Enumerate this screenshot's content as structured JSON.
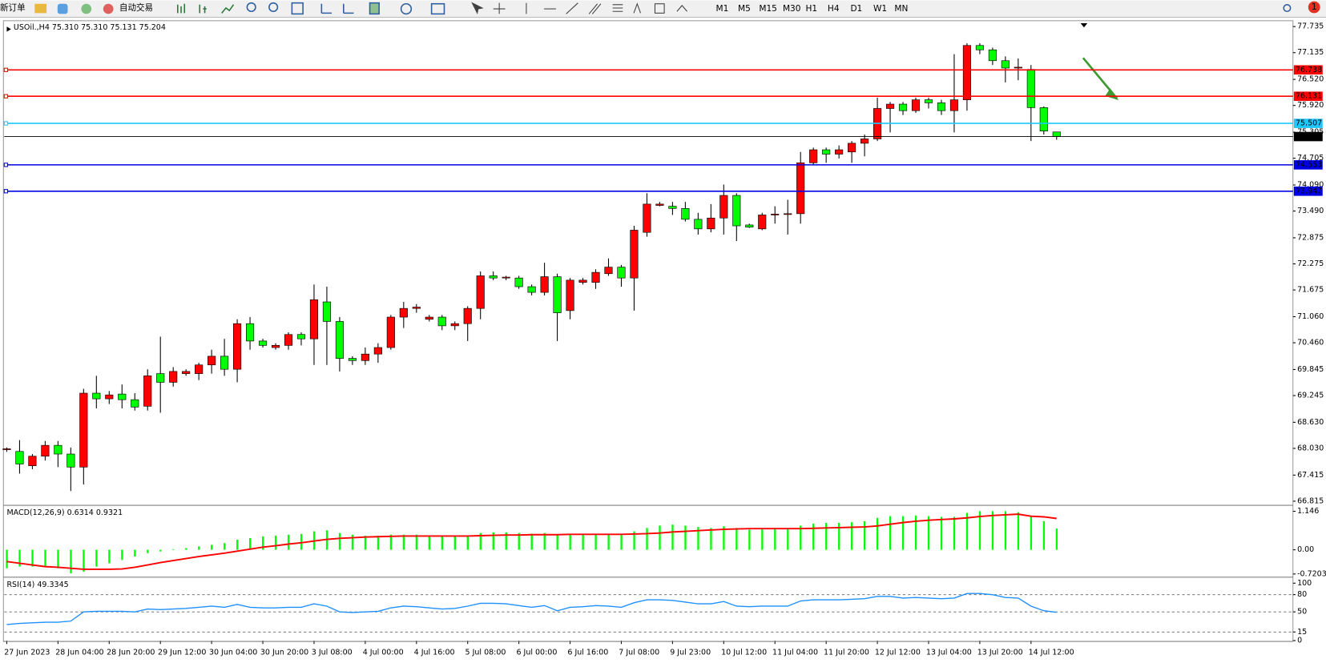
{
  "toolbar": {
    "new_order": "新订单",
    "auto_trading": "自动交易",
    "timeframes": [
      "M1",
      "M5",
      "M15",
      "M30",
      "H1",
      "H4",
      "D1",
      "W1",
      "MN"
    ],
    "notification_count": 1
  },
  "chart_data": [
    {
      "type": "candlestick",
      "title": "USOil.,H4 75.310 75.310 75.131 75.204",
      "up_color": "#ff0000",
      "down_color": "#00ff00",
      "categories": [
        "27 Jun 2023",
        null,
        null,
        null,
        "28 Jun 04:00",
        null,
        null,
        null,
        "28 Jun 20:00",
        null,
        null,
        null,
        "29 Jun 12:00",
        null,
        null,
        null,
        "30 Jun 04:00",
        null,
        null,
        null,
        "30 Jun 20:00",
        null,
        null,
        null,
        "3 Jul 08:00",
        null,
        null,
        null,
        "4 Jul 00:00",
        null,
        null,
        null,
        "4 Jul 16:00",
        null,
        null,
        null,
        "5 Jul 08:00",
        null,
        null,
        null,
        "6 Jul 00:00",
        null,
        null,
        null,
        "6 Jul 16:00",
        null,
        null,
        null,
        "7 Jul 08:00",
        null,
        null,
        null,
        "9 Jul 23:00",
        null,
        null,
        null,
        "10 Jul 12:00",
        null,
        null,
        null,
        "11 Jul 04:00",
        null,
        null,
        null,
        "11 Jul 20:00",
        null,
        null,
        null,
        "12 Jul 12:00",
        null,
        null,
        null,
        "13 Jul 04:00",
        null,
        null,
        null,
        "13 Jul 20:00",
        null,
        null,
        null,
        "14 Jul 12:00",
        null,
        null
      ],
      "open": [
        68.0,
        67.96,
        67.63,
        67.85,
        68.1,
        67.9,
        67.6,
        69.3,
        69.17,
        69.28,
        69.15,
        69.0,
        69.75,
        69.55,
        69.75,
        69.75,
        69.95,
        70.15,
        69.85,
        70.9,
        70.5,
        70.35,
        70.4,
        70.65,
        70.55,
        71.4,
        70.95,
        70.1,
        70.05,
        70.2,
        70.35,
        71.05,
        71.25,
        71.0,
        71.05,
        70.85,
        70.9,
        71.25,
        72.0,
        71.95,
        71.95,
        71.75,
        71.62,
        71.98,
        71.2,
        71.85,
        71.85,
        72.05,
        72.2,
        71.95,
        73.0,
        73.62,
        73.6,
        73.55,
        73.3,
        73.08,
        73.33,
        73.85,
        73.17,
        73.08,
        73.4,
        73.42,
        73.43,
        74.6,
        74.9,
        74.8,
        74.85,
        75.05,
        75.15,
        75.85,
        75.95,
        75.8,
        76.05,
        75.98,
        75.8,
        76.05,
        77.3,
        77.2,
        76.95,
        76.78,
        76.75,
        75.87,
        75.31
      ],
      "high": [
        68.05,
        68.22,
        67.9,
        68.2,
        68.2,
        68.05,
        69.4,
        69.7,
        69.35,
        69.5,
        69.3,
        69.85,
        70.6,
        69.9,
        69.85,
        70.0,
        70.3,
        70.55,
        71.0,
        71.05,
        70.55,
        70.45,
        70.7,
        70.7,
        71.8,
        71.75,
        71.05,
        70.15,
        70.35,
        70.45,
        71.1,
        71.4,
        71.35,
        71.1,
        71.1,
        70.95,
        71.3,
        72.1,
        72.1,
        72.0,
        72.0,
        71.8,
        72.3,
        72.05,
        71.95,
        71.95,
        72.15,
        72.4,
        72.25,
        73.15,
        73.9,
        73.7,
        73.7,
        73.7,
        73.45,
        73.65,
        74.1,
        73.9,
        73.2,
        73.45,
        73.6,
        73.75,
        74.85,
        74.95,
        74.95,
        75.0,
        75.1,
        75.25,
        76.1,
        76.0,
        76.0,
        76.1,
        76.1,
        76.05,
        77.1,
        77.35,
        77.35,
        77.25,
        77.05,
        77.0,
        76.85,
        75.9,
        75.31
      ],
      "low": [
        67.95,
        67.45,
        67.55,
        67.75,
        67.6,
        67.05,
        67.2,
        68.95,
        69.05,
        68.95,
        68.9,
        68.9,
        68.85,
        69.45,
        69.7,
        69.6,
        69.75,
        69.7,
        69.55,
        70.3,
        70.35,
        70.3,
        70.3,
        70.4,
        69.95,
        69.95,
        69.8,
        69.95,
        69.95,
        70.0,
        70.3,
        70.8,
        71.15,
        70.95,
        70.75,
        70.75,
        70.5,
        71.0,
        71.9,
        71.9,
        71.7,
        71.55,
        71.55,
        70.5,
        71.0,
        71.8,
        71.7,
        72.0,
        71.75,
        71.2,
        72.9,
        73.6,
        73.4,
        73.25,
        72.95,
        73.0,
        72.95,
        72.8,
        73.1,
        73.05,
        73.2,
        72.95,
        73.2,
        74.55,
        74.6,
        74.7,
        74.6,
        74.75,
        75.1,
        75.3,
        75.7,
        75.75,
        75.85,
        75.7,
        75.3,
        75.8,
        77.1,
        76.85,
        76.45,
        76.5,
        75.1,
        75.25,
        75.131
      ],
      "close": [
        68.02,
        67.67,
        67.85,
        68.1,
        67.9,
        67.6,
        69.3,
        69.17,
        69.26,
        69.15,
        68.98,
        69.7,
        69.55,
        69.8,
        69.8,
        69.95,
        70.15,
        69.85,
        70.9,
        70.5,
        70.4,
        70.4,
        70.65,
        70.55,
        71.45,
        70.95,
        70.1,
        70.05,
        70.2,
        70.35,
        71.05,
        71.25,
        71.28,
        71.05,
        70.85,
        70.9,
        71.25,
        72.0,
        71.95,
        71.97,
        71.75,
        71.62,
        71.98,
        71.15,
        71.9,
        71.9,
        72.08,
        72.2,
        71.95,
        73.05,
        73.65,
        73.65,
        73.55,
        73.3,
        73.08,
        73.33,
        73.85,
        73.15,
        73.12,
        73.4,
        73.42,
        73.43,
        74.6,
        74.9,
        74.8,
        74.9,
        75.05,
        75.15,
        75.85,
        75.95,
        75.8,
        76.05,
        75.98,
        75.8,
        76.05,
        77.3,
        77.2,
        76.95,
        76.78,
        76.8,
        75.87,
        75.33,
        75.204
      ],
      "ylim": [
        66.74,
        77.85
      ],
      "yticks": [
        77.735,
        {
          "value": 77.135,
          "label": "77.135"
        },
        {
          "value": 76.52,
          "label": "76.520"
        },
        {
          "value": 75.92,
          "label": "75.920"
        },
        75.305,
        74.705,
        {
          "value": 74.09,
          "label": "74.090"
        },
        {
          "value": 73.49,
          "label": "73.490"
        },
        72.875,
        72.275,
        71.675,
        {
          "value": 71.06,
          "label": "71.060"
        },
        {
          "value": 70.46,
          "label": "70.460"
        },
        69.845,
        69.245,
        {
          "value": 68.63,
          "label": "68.630"
        },
        {
          "value": 68.03,
          "label": "68.030"
        },
        67.415,
        66.815
      ],
      "lines": [
        {
          "value": 76.738,
          "color": "#ff0000"
        },
        {
          "value": 76.131,
          "color": "#ff0000"
        },
        {
          "value": 75.507,
          "color": "#1ec8ff"
        },
        {
          "value": 74.553,
          "color": "#0000e6"
        },
        {
          "value": 73.947,
          "color": "#0000e6"
        }
      ]
    },
    {
      "type": "macd",
      "title": "MACD(12,26,9) 0.6314 0.9321",
      "ylim": [
        -0.789,
        1.299
      ],
      "yticks": [
        1.146,
        {
          "value": 0,
          "label": "0.00"
        },
        -0.7203
      ],
      "series": [
        {
          "color": "#00ff00",
          "values": [
            -0.55,
            -0.5,
            -0.5,
            -0.5,
            -0.55,
            -0.7,
            -0.65,
            -0.5,
            -0.4,
            -0.3,
            -0.2,
            -0.1,
            -0.05,
            0.02,
            0.05,
            0.1,
            0.15,
            0.2,
            0.3,
            0.35,
            0.4,
            0.42,
            0.45,
            0.47,
            0.55,
            0.58,
            0.5,
            0.45,
            0.42,
            0.42,
            0.45,
            0.45,
            0.45,
            0.42,
            0.4,
            0.4,
            0.42,
            0.5,
            0.52,
            0.52,
            0.5,
            0.48,
            0.5,
            0.45,
            0.45,
            0.45,
            0.45,
            0.47,
            0.45,
            0.55,
            0.65,
            0.72,
            0.75,
            0.72,
            0.68,
            0.65,
            0.7,
            0.65,
            0.6,
            0.62,
            0.65,
            0.62,
            0.72,
            0.78,
            0.8,
            0.8,
            0.82,
            0.85,
            0.95,
            1.0,
            1.0,
            1.02,
            1.0,
            0.98,
            0.98,
            1.1,
            1.15,
            1.15,
            1.15,
            1.12,
            1.0,
            0.85,
            0.6314
          ]
        },
        {
          "color": "#ff0000",
          "values": [
            -0.35,
            -0.4,
            -0.45,
            -0.5,
            -0.52,
            -0.55,
            -0.58,
            -0.58,
            -0.58,
            -0.57,
            -0.52,
            -0.45,
            -0.38,
            -0.32,
            -0.26,
            -0.2,
            -0.15,
            -0.1,
            -0.04,
            0.02,
            0.08,
            0.12,
            0.17,
            0.21,
            0.26,
            0.31,
            0.34,
            0.36,
            0.38,
            0.39,
            0.4,
            0.41,
            0.41,
            0.41,
            0.41,
            0.41,
            0.41,
            0.42,
            0.43,
            0.44,
            0.44,
            0.45,
            0.45,
            0.45,
            0.46,
            0.46,
            0.46,
            0.46,
            0.46,
            0.47,
            0.48,
            0.5,
            0.53,
            0.55,
            0.57,
            0.59,
            0.61,
            0.62,
            0.63,
            0.63,
            0.63,
            0.63,
            0.63,
            0.64,
            0.65,
            0.66,
            0.67,
            0.68,
            0.71,
            0.76,
            0.81,
            0.85,
            0.88,
            0.9,
            0.92,
            0.95,
            0.99,
            1.02,
            1.04,
            1.06,
            1.0,
            0.98,
            0.9321
          ]
        }
      ]
    },
    {
      "type": "line",
      "title": "RSI(14) 49.3345",
      "ylim": [
        0,
        108.96
      ],
      "yticks": [
        100,
        80,
        50,
        15,
        0
      ],
      "levels": [
        80,
        50,
        15
      ],
      "series": [
        {
          "color": "#1e90ff",
          "values": [
            28,
            30,
            31,
            32,
            32,
            34,
            50,
            51,
            51,
            51,
            50,
            55,
            54,
            55,
            56,
            58,
            60,
            58,
            63,
            58,
            57,
            57,
            58,
            58,
            64,
            60,
            50,
            49,
            50,
            51,
            57,
            60,
            59,
            57,
            55,
            56,
            60,
            65,
            65,
            64,
            61,
            58,
            61,
            52,
            58,
            59,
            61,
            60,
            58,
            66,
            71,
            71,
            70,
            67,
            64,
            64,
            68,
            60,
            59,
            60,
            60,
            60,
            69,
            71,
            71,
            71,
            72,
            73,
            77,
            77,
            74,
            75,
            74,
            73,
            74,
            82,
            82,
            80,
            75,
            74,
            60,
            52,
            49.3345
          ]
        }
      ]
    }
  ]
}
